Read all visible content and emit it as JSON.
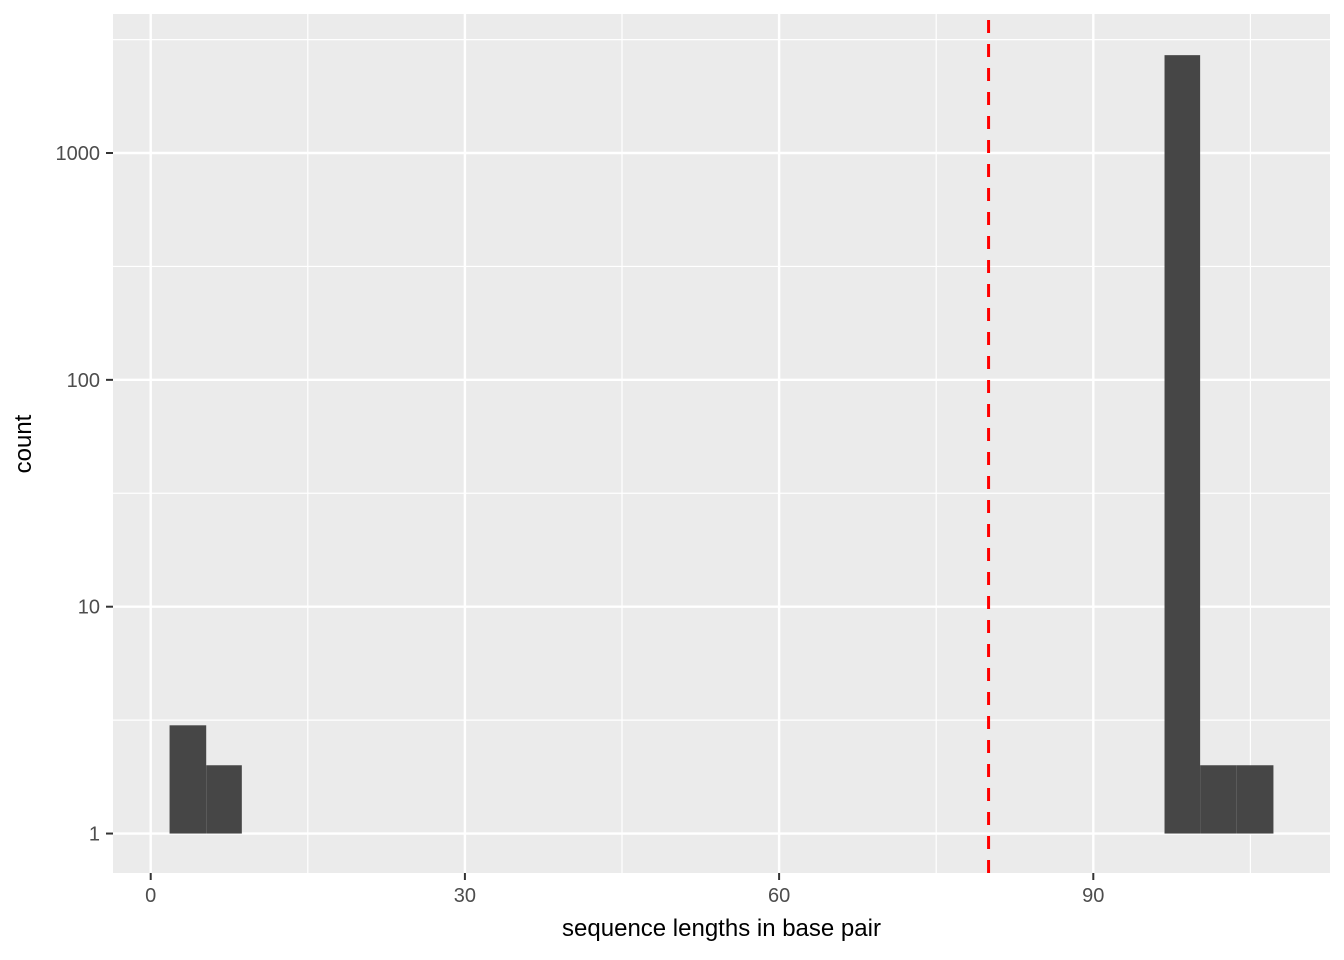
{
  "chart_data": {
    "type": "bar",
    "subtype": "histogram",
    "title": "",
    "xlabel": "sequence lengths in base pair",
    "ylabel": "count",
    "x_scale": "linear",
    "y_scale": "log10",
    "xlim": [
      -3.6,
      112.6
    ],
    "ylim": [
      0.67,
      4100
    ],
    "x_major_ticks": [
      0,
      30,
      60,
      90
    ],
    "x_minor_ticks": [
      15,
      45,
      75,
      105
    ],
    "y_major_ticks": [
      1,
      10,
      100,
      1000
    ],
    "y_minor_ticks": [
      3.162,
      31.62,
      316.2,
      3162
    ],
    "grid": true,
    "legend": "none",
    "bar_baseline": 1,
    "bins": [
      {
        "x0": 1.8,
        "x1": 5.3,
        "count": 3
      },
      {
        "x0": 5.3,
        "x1": 8.7,
        "count": 2
      },
      {
        "x0": 96.8,
        "x1": 100.2,
        "count": 2700
      },
      {
        "x0": 100.2,
        "x1": 103.7,
        "count": 2
      },
      {
        "x0": 103.7,
        "x1": 107.2,
        "count": 2
      }
    ],
    "reference_line": {
      "orientation": "vertical",
      "x": 80,
      "style": "dashed",
      "color": "#FF0000"
    },
    "colors": {
      "background": "#FFFFFF",
      "panel_background": "#EBEBEB",
      "grid_major": "#FFFFFF",
      "grid_minor": "#FFFFFF",
      "bar_fill": "#464646",
      "tick_mark": "#333333",
      "tick_label": "#4D4D4D",
      "axis_title": "#000000"
    }
  }
}
